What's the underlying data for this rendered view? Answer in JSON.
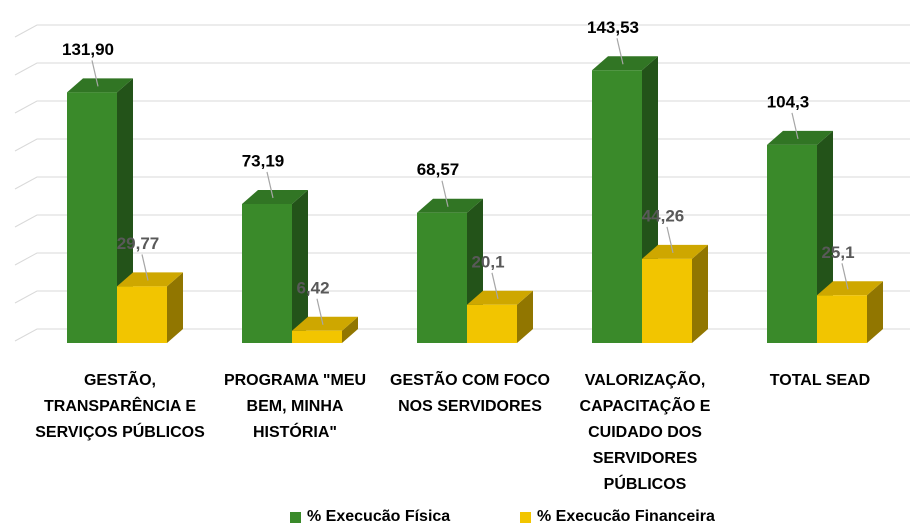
{
  "chart_data": {
    "type": "bar3d",
    "categories": [
      "GESTÃO, TRANSPARÊNCIA E SERVIÇOS PÚBLICOS",
      "PROGRAMA \"MEU BEM, MINHA HISTÓRIA\"",
      "GESTÃO COM FOCO NOS SERVIDORES",
      "VALORIZAÇÃO, CAPACITAÇÃO E CUIDADO DOS SERVIDORES PÚBLICOS",
      "TOTAL SEAD"
    ],
    "series": [
      {
        "name": "% Execucão Física",
        "color": "#3a8a2a",
        "values": [
          131.9,
          73.19,
          68.57,
          143.53,
          104.3
        ],
        "value_labels": [
          "131,90",
          "73,19",
          "68,57",
          "143,53",
          "104,3"
        ]
      },
      {
        "name": "% Execucão Financeira",
        "color": "#f2c500",
        "values": [
          29.77,
          6.42,
          20.1,
          44.26,
          25.1
        ],
        "value_labels": [
          "29,77",
          "6,42",
          "20,1",
          "44,26",
          "25,1"
        ]
      }
    ],
    "ylim": [
      0,
      160
    ],
    "yticks": [
      0,
      20,
      40,
      60,
      80,
      100,
      120,
      140,
      160
    ],
    "grid": true
  }
}
